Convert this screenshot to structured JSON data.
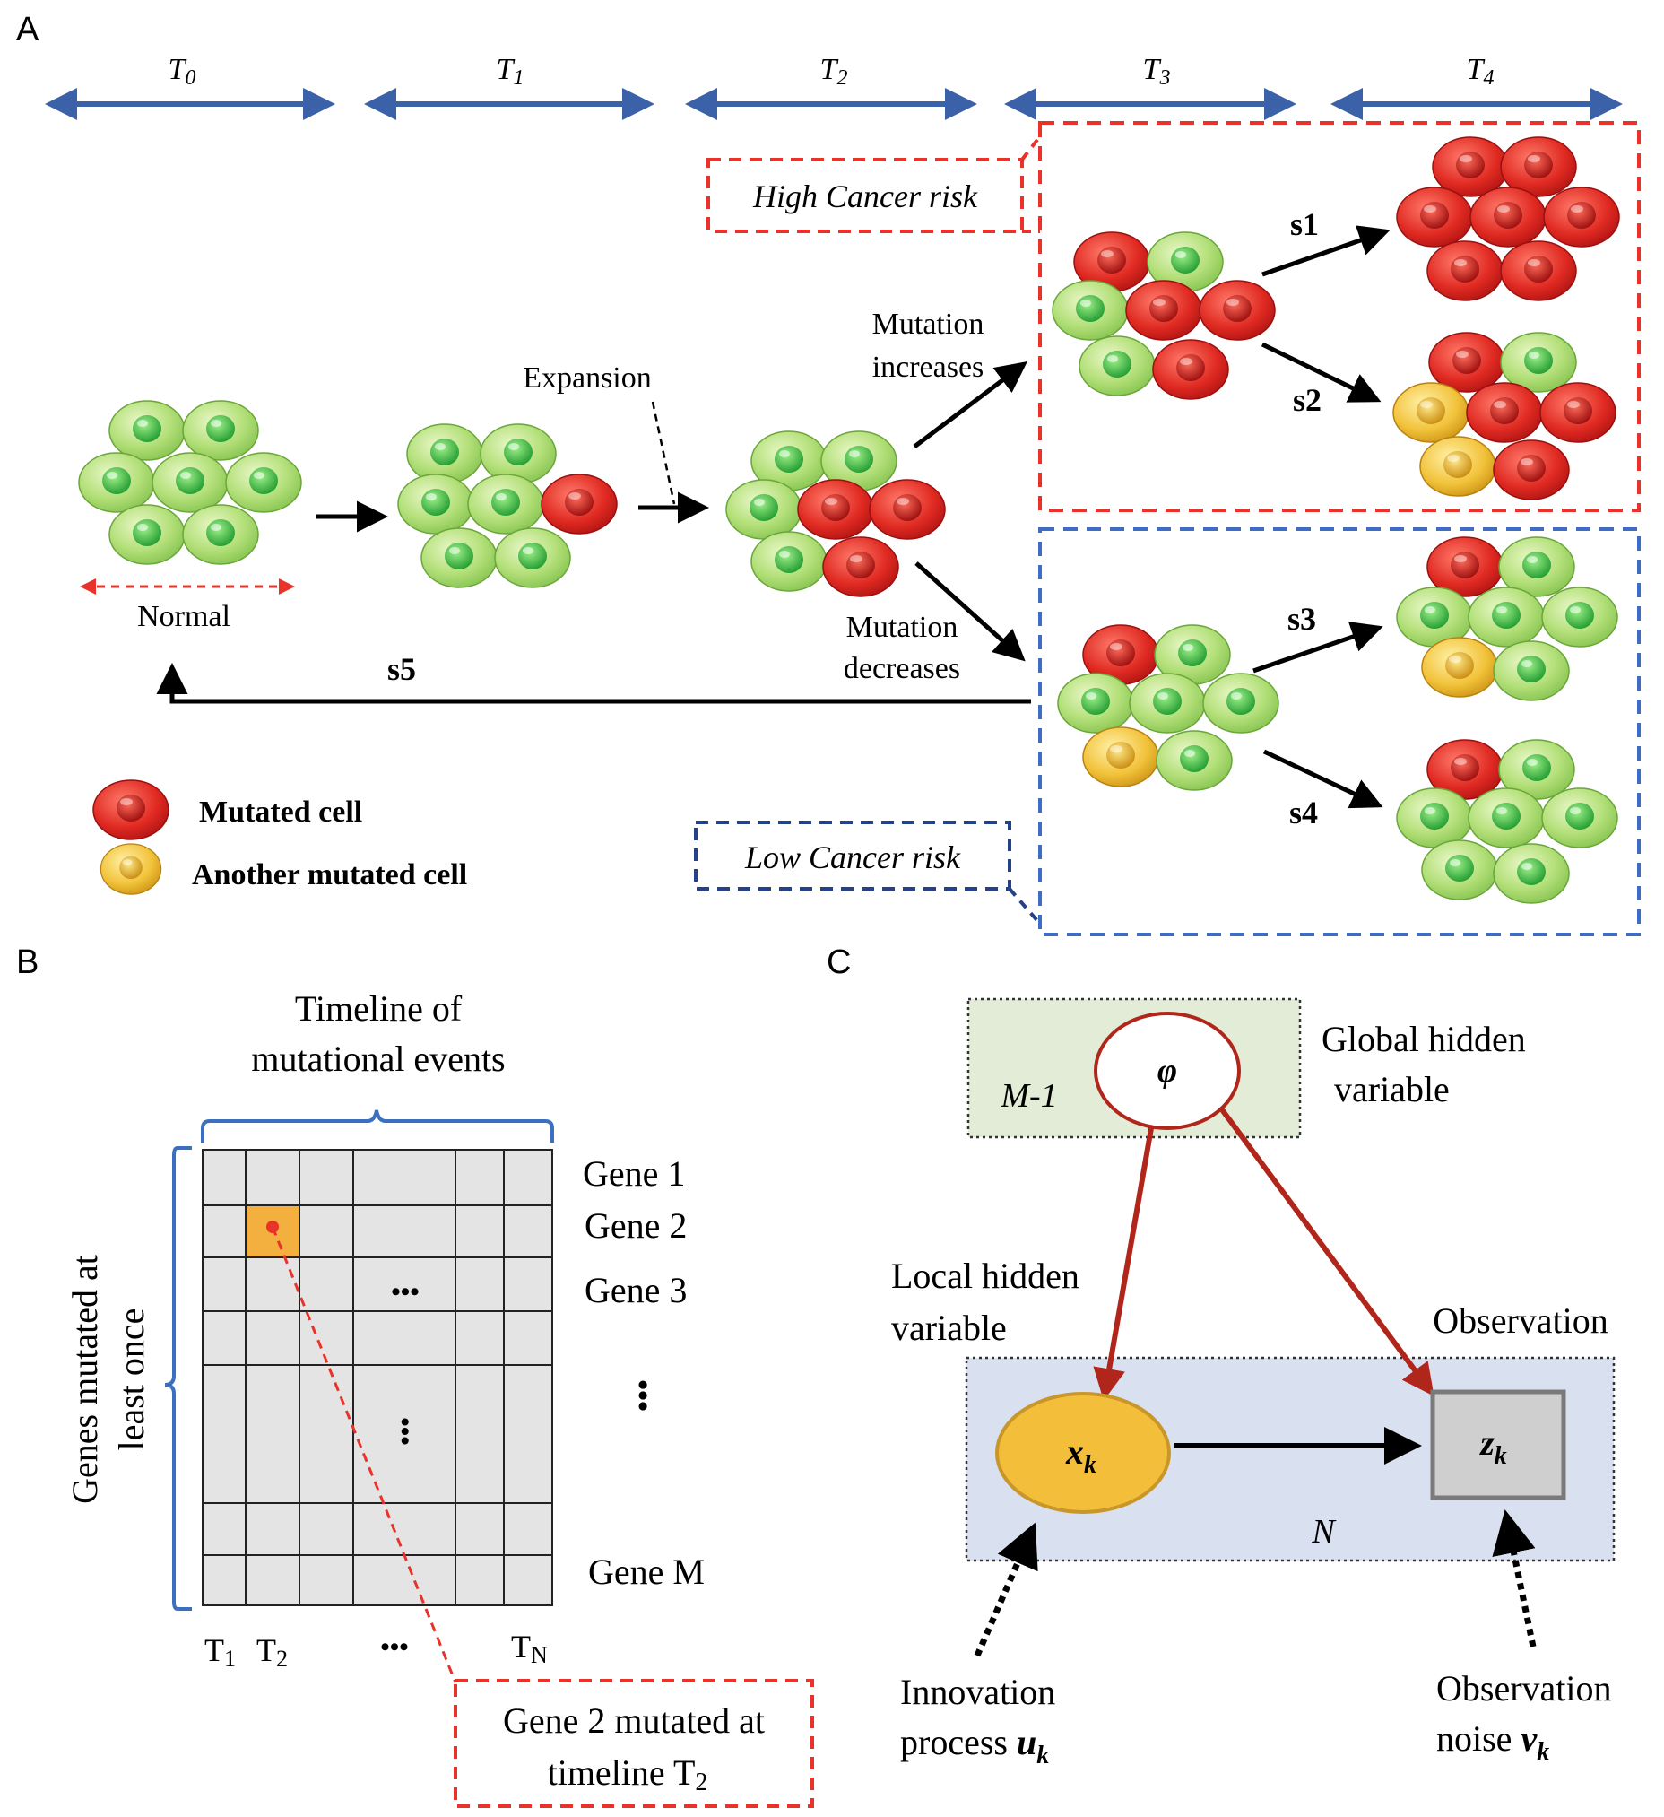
{
  "panel_labels": {
    "a": "A",
    "b": "B",
    "c": "C"
  },
  "panel_a": {
    "timeline": [
      {
        "label": "T",
        "sub": "0"
      },
      {
        "label": "T",
        "sub": "1"
      },
      {
        "label": "T",
        "sub": "2"
      },
      {
        "label": "T",
        "sub": "3"
      },
      {
        "label": "T",
        "sub": "4"
      }
    ],
    "high_risk": "High Cancer risk",
    "low_risk": "Low Cancer risk",
    "normal": "Normal",
    "expansion": "Expansion",
    "mutation_increases": [
      "Mutation",
      "increases"
    ],
    "mutation_decreases": [
      "Mutation",
      "decreases"
    ],
    "stages": {
      "s1": "s1",
      "s2": "s2",
      "s3": "s3",
      "s4": "s4",
      "s5": "s5"
    },
    "legend": {
      "mutated": "Mutated cell",
      "another": "Another mutated cell"
    },
    "colors": {
      "high_risk": "#e8322a",
      "low_risk": "#3f6cc4",
      "timeline": "#3b62a8",
      "healthy": "#8fcf5a",
      "mutated": "#d81e1e",
      "another": "#f2b92c"
    }
  },
  "panel_b": {
    "title": [
      "Timeline of",
      "mutational events"
    ],
    "y_label": [
      "Genes mutated at",
      "least once"
    ],
    "genes": [
      "Gene 1",
      "Gene 2",
      "Gene 3",
      "Gene M"
    ],
    "ellipsis": "•••",
    "x_labels": [
      {
        "label": "T",
        "sub": "1"
      },
      {
        "label": "T",
        "sub": "2"
      },
      {
        "label": "T",
        "sub": "N"
      }
    ],
    "callout": [
      "Gene 2 mutated at",
      "timeline T"
    ],
    "callout_sub": "2",
    "colors": {
      "grid_fill": "#e4e4e4",
      "highlight": "#f3b03e",
      "bracket": "#3b6fc0"
    }
  },
  "panel_c": {
    "global_plate": "M-1",
    "global_label": [
      "Global hidden",
      "variable"
    ],
    "phi": "φ",
    "local_label": [
      "Local hidden",
      "variable"
    ],
    "observation": "Observation",
    "x_node": "x",
    "x_sub": "k",
    "z_node": "z",
    "z_sub": "k",
    "local_plate": "N",
    "innovation": [
      "Innovation",
      "process"
    ],
    "innovation_var": "u",
    "innovation_sub": "k",
    "obs_noise": [
      "Observation",
      "noise"
    ],
    "noise_var": "v",
    "noise_sub": "k",
    "colors": {
      "green_plate": "#e3ecd6",
      "blue_plate": "#d9e0f0",
      "edge_red": "#b0261b",
      "x_fill": "#f3bf3a",
      "z_fill": "#cfcfcf"
    }
  }
}
